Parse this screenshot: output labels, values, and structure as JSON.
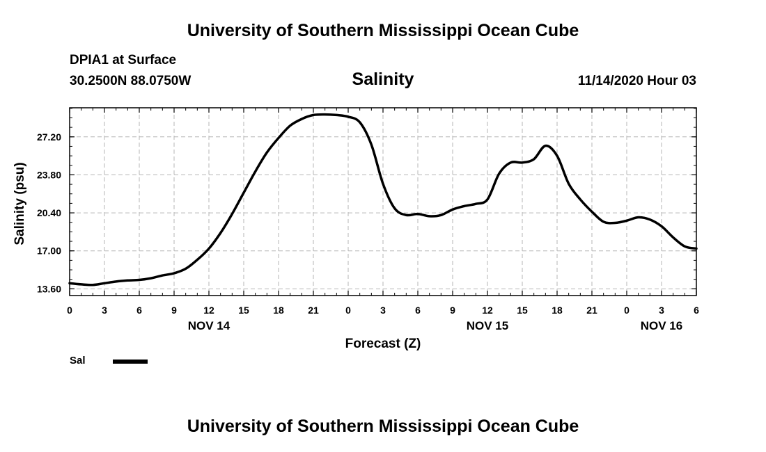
{
  "header": {
    "title": "University of Southern Mississippi Ocean Cube",
    "station": "DPIA1 at Surface",
    "coords": "30.2500N 88.0750W",
    "variable": "Salinity",
    "datetime": "11/14/2020 Hour 03"
  },
  "footer": {
    "title": "University of Southern Mississippi Ocean Cube"
  },
  "legend": {
    "label": "Sal",
    "color": "#000000"
  },
  "chart_data": {
    "type": "line",
    "xlabel": "Forecast (Z)",
    "ylabel": "Salinity (psu)",
    "xlim": [
      0,
      54
    ],
    "ylim": [
      13.0,
      29.8
    ],
    "yticks": [
      "13.60",
      "17.00",
      "20.40",
      "23.80",
      "27.20"
    ],
    "ytick_values": [
      13.6,
      17.0,
      20.4,
      23.8,
      27.2
    ],
    "xtick_values": [
      0,
      3,
      6,
      9,
      12,
      15,
      18,
      21,
      24,
      27,
      30,
      33,
      36,
      39,
      42,
      45,
      48,
      51,
      54
    ],
    "xticks": [
      "0",
      "3",
      "6",
      "9",
      "12",
      "15",
      "18",
      "21",
      "0",
      "3",
      "6",
      "9",
      "12",
      "15",
      "18",
      "21",
      "0",
      "3",
      "6"
    ],
    "day_labels": [
      {
        "label": "NOV 14",
        "x": 12
      },
      {
        "label": "NOV 15",
        "x": 36
      },
      {
        "label": "NOV 16",
        "x": 51
      }
    ],
    "grid": true,
    "legend_position": "bottom-left",
    "series": [
      {
        "name": "Sal",
        "color": "#000000",
        "x": [
          0,
          1,
          2,
          3,
          4,
          5,
          6,
          7,
          8,
          9,
          10,
          11,
          12,
          13,
          14,
          15,
          16,
          17,
          18,
          19,
          20,
          21,
          22,
          23,
          24,
          25,
          26,
          27,
          28,
          29,
          30,
          31,
          32,
          33,
          34,
          35,
          36,
          37,
          38,
          39,
          40,
          41,
          42,
          43,
          44,
          45,
          46,
          47,
          48,
          49,
          50,
          51,
          52,
          53,
          54
        ],
        "values": [
          14.1,
          14.0,
          13.95,
          14.1,
          14.25,
          14.35,
          14.4,
          14.55,
          14.8,
          15.0,
          15.4,
          16.2,
          17.2,
          18.6,
          20.3,
          22.2,
          24.1,
          25.8,
          27.1,
          28.2,
          28.8,
          29.15,
          29.2,
          29.15,
          29.0,
          28.5,
          26.5,
          23.0,
          20.8,
          20.2,
          20.3,
          20.1,
          20.2,
          20.7,
          21.0,
          21.2,
          21.6,
          23.9,
          24.9,
          24.9,
          25.2,
          26.4,
          25.5,
          23.0,
          21.6,
          20.5,
          19.6,
          19.5,
          19.7,
          20.0,
          19.8,
          19.2,
          18.2,
          17.4,
          17.2
        ]
      }
    ]
  }
}
